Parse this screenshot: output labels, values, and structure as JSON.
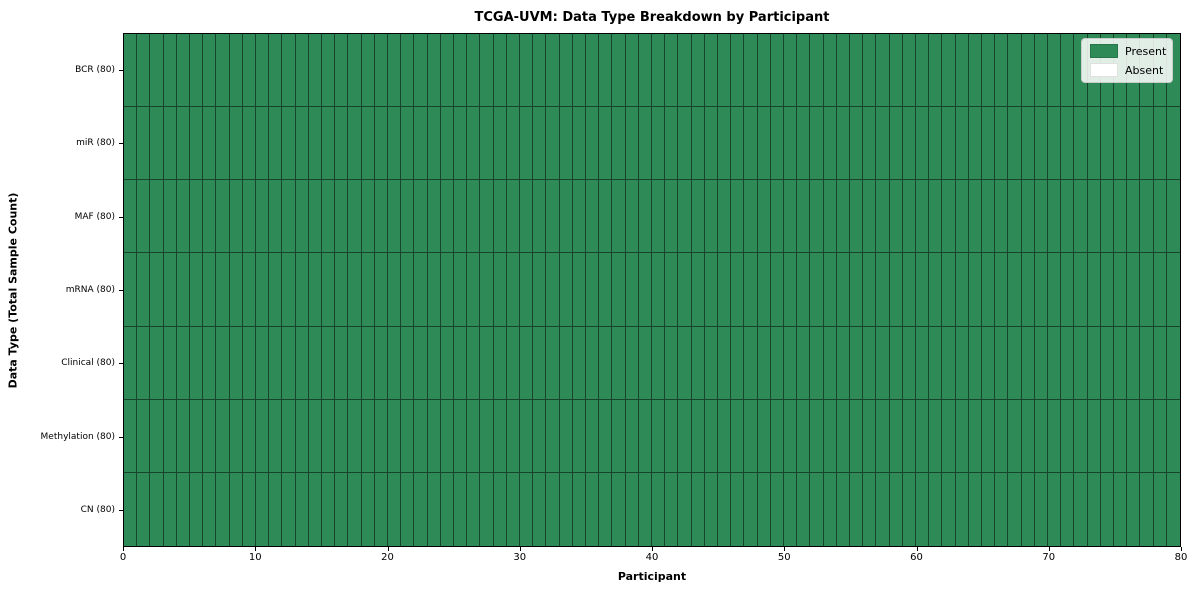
{
  "title": "TCGA-UVM: Data Type Breakdown by Participant",
  "axes": {
    "x_label": "Participant",
    "y_label": "Data Type (Total Sample Count)"
  },
  "colors": {
    "present": "#2E8B57",
    "absent": "#FFFFFF",
    "grid_line": "rgba(0,0,0,0.50)",
    "spine": "#000000"
  },
  "legend": {
    "items": [
      {
        "label": "Present",
        "color": "#2E8B57"
      },
      {
        "label": "Absent",
        "color": "#FFFFFF"
      }
    ],
    "position": "upper right"
  },
  "chart_data": {
    "type": "heatmap",
    "title": "TCGA-UVM: Data Type Breakdown by Participant",
    "xlabel": "Participant",
    "ylabel": "Data Type (Total Sample Count)",
    "x_range": [
      0,
      80
    ],
    "x_ticks": [
      0,
      10,
      20,
      30,
      40,
      50,
      60,
      70,
      80
    ],
    "n_participants": 80,
    "grid": "cell borders between every participant column and data type row",
    "legend_entries": [
      "Present",
      "Absent"
    ],
    "legend_position": "upper right",
    "rows": [
      {
        "label": "BCR (80)",
        "data_type": "BCR",
        "total_sample_count": 80,
        "present_count": 80,
        "absent_count": 0
      },
      {
        "label": "miR (80)",
        "data_type": "miR",
        "total_sample_count": 80,
        "present_count": 80,
        "absent_count": 0
      },
      {
        "label": "MAF (80)",
        "data_type": "MAF",
        "total_sample_count": 80,
        "present_count": 80,
        "absent_count": 0
      },
      {
        "label": "mRNA (80)",
        "data_type": "mRNA",
        "total_sample_count": 80,
        "present_count": 80,
        "absent_count": 0
      },
      {
        "label": "Clinical (80)",
        "data_type": "Clinical",
        "total_sample_count": 80,
        "present_count": 80,
        "absent_count": 0
      },
      {
        "label": "Methylation (80)",
        "data_type": "Methylation",
        "total_sample_count": 80,
        "present_count": 80,
        "absent_count": 0
      },
      {
        "label": "CN (80)",
        "data_type": "CN",
        "total_sample_count": 80,
        "present_count": 80,
        "absent_count": 0
      }
    ],
    "cell_note": "every participant (0-79) is Present (value=1) for all 7 data types"
  }
}
